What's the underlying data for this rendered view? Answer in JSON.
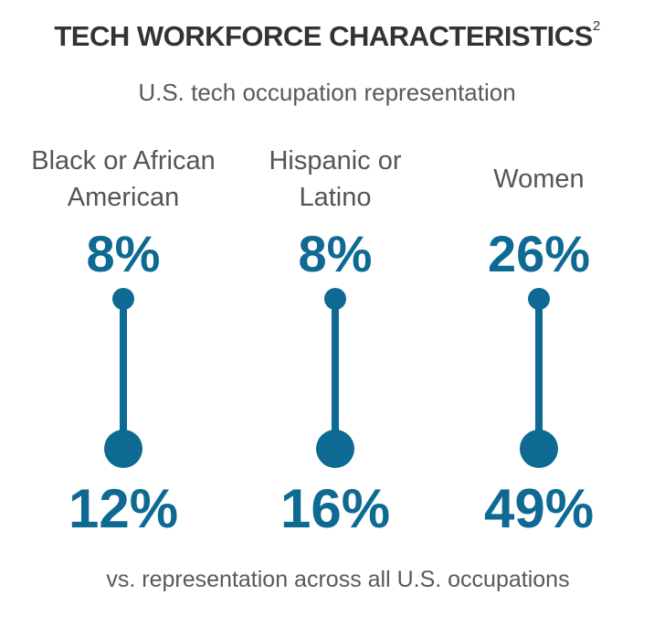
{
  "title": "TECH WORKFORCE CHARACTERISTICS",
  "title_superscript": "2",
  "subtitle": "U.S. tech occupation representation",
  "footer": "vs. representation across all U.S. occupations",
  "colors": {
    "accent": "#0e6a93",
    "title": "#333333",
    "text": "#595959"
  },
  "chart_data": {
    "type": "dumbbell",
    "title": "TECH WORKFORCE CHARACTERISTICS",
    "categories": [
      {
        "line1": "Black or African",
        "line2": "American"
      },
      {
        "line1": "Hispanic or",
        "line2": "Latino"
      },
      {
        "line1": "Women",
        "line2": ""
      }
    ],
    "series": [
      {
        "name": "U.S. tech occupation representation",
        "values": [
          8,
          8,
          26
        ],
        "labels": [
          "8%",
          "8%",
          "26%"
        ]
      },
      {
        "name": "vs. representation across all U.S. occupations",
        "values": [
          12,
          16,
          49
        ],
        "labels": [
          "12%",
          "16%",
          "49%"
        ]
      }
    ]
  }
}
